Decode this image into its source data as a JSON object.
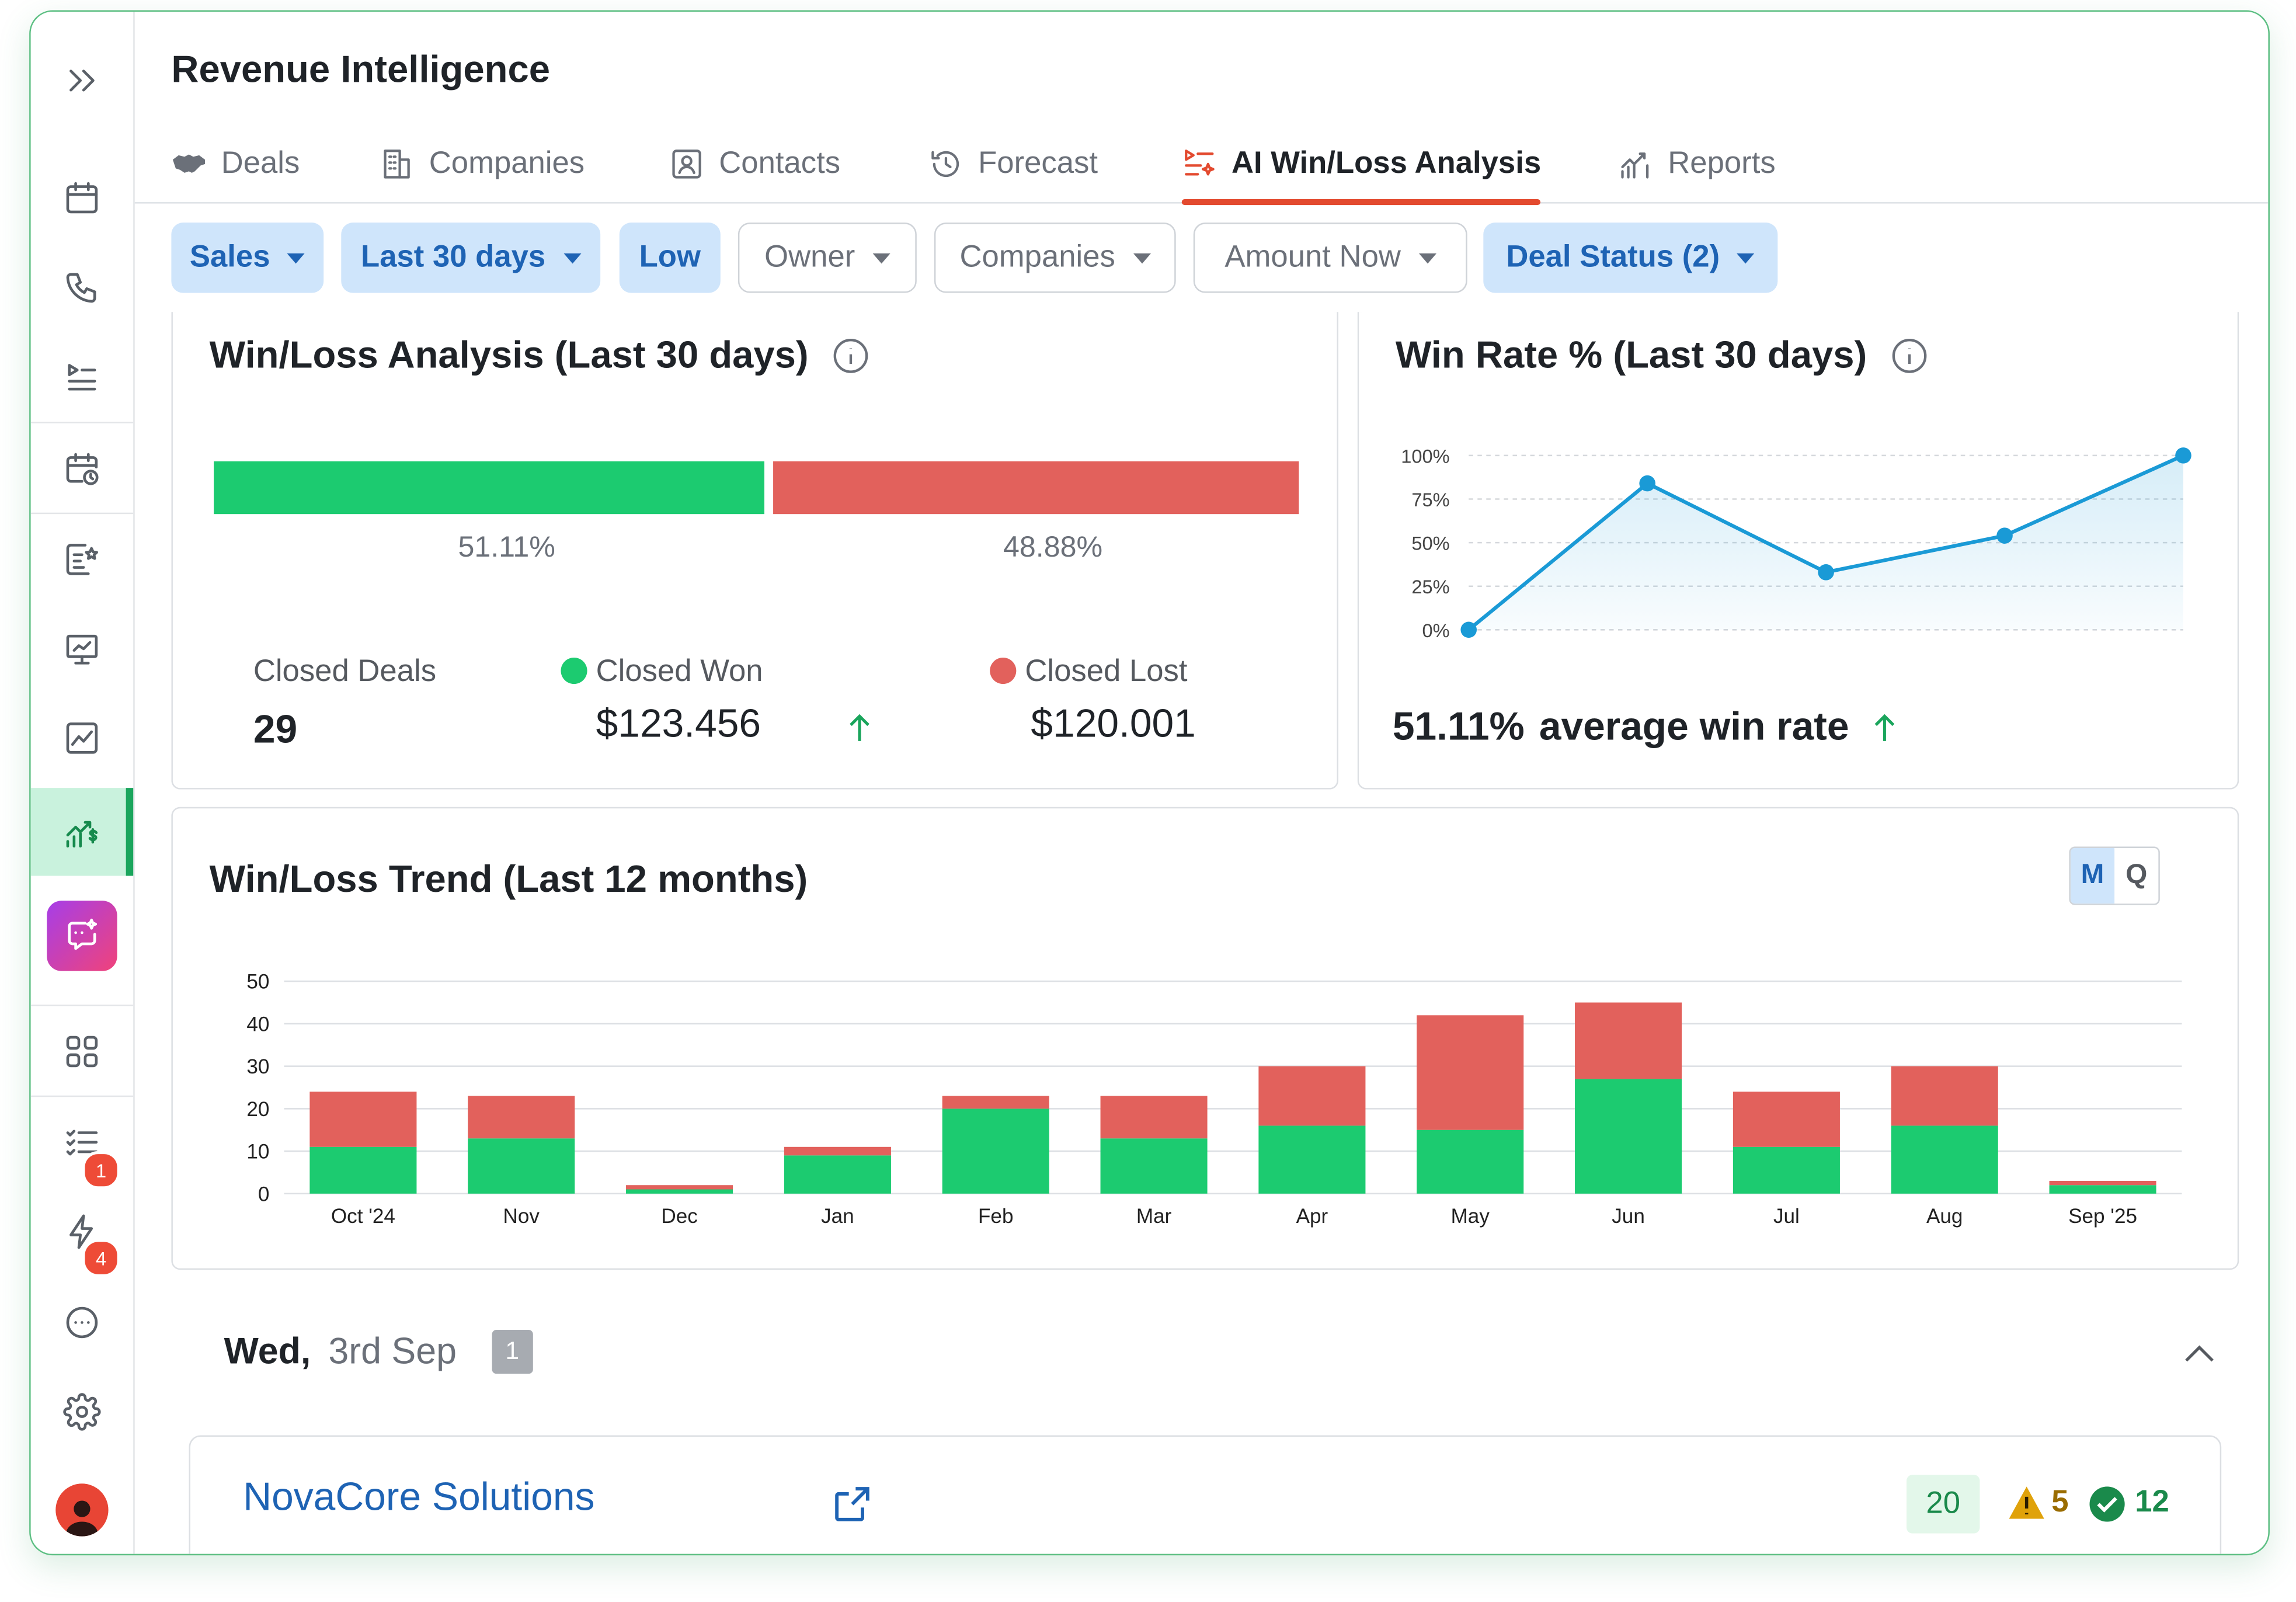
{
  "app": {
    "title": "Revenue Intelligence"
  },
  "sidebar": {
    "expand_icon": "chevrons-right-icon",
    "items": [
      {
        "icon": "calendar-icon"
      },
      {
        "icon": "phone-icon"
      },
      {
        "icon": "playlist-icon"
      },
      {
        "icon": "calendar-clock-icon"
      },
      {
        "icon": "notes-star-icon"
      },
      {
        "icon": "presentation-chart-icon"
      },
      {
        "icon": "line-chart-icon"
      },
      {
        "icon": "revenue-chart-icon",
        "active": true
      },
      {
        "icon": "ai-chat-icon"
      },
      {
        "icon": "apps-grid-icon"
      },
      {
        "icon": "task-list-icon",
        "badge": "1"
      },
      {
        "icon": "lightning-icon",
        "badge": "4"
      },
      {
        "icon": "more-icon"
      },
      {
        "icon": "settings-icon"
      },
      {
        "icon": "user-avatar-icon"
      }
    ]
  },
  "tabs": [
    {
      "label": "Deals",
      "icon": "handshake-icon"
    },
    {
      "label": "Companies",
      "icon": "building-icon"
    },
    {
      "label": "Contacts",
      "icon": "contact-card-icon"
    },
    {
      "label": "Forecast",
      "icon": "history-icon"
    },
    {
      "label": "AI Win/Loss Analysis",
      "icon": "ai-list-icon",
      "active": true
    },
    {
      "label": "Reports",
      "icon": "report-chart-icon"
    }
  ],
  "filters": [
    {
      "label": "Sales",
      "active": true,
      "dropdown": true
    },
    {
      "label": "Last 30 days",
      "active": true,
      "dropdown": true
    },
    {
      "label": "Low",
      "active": true,
      "dropdown": false
    },
    {
      "label": "Owner",
      "active": false,
      "dropdown": true
    },
    {
      "label": "Companies",
      "active": false,
      "dropdown": true
    },
    {
      "label": "Amount Now",
      "active": false,
      "dropdown": true
    },
    {
      "label": "Deal Status (2)",
      "active": true,
      "dropdown": true
    }
  ],
  "winloss": {
    "title": "Win/Loss Analysis (Last 30 days)",
    "won_pct": "51.11%",
    "lost_pct": "48.88%",
    "won_fraction": 0.5111,
    "closed_deals_label": "Closed Deals",
    "closed_deals_value": "29",
    "closed_won_label": "Closed Won",
    "closed_won_value": "$123.456",
    "closed_lost_label": "Closed Lost",
    "closed_lost_value": "$120.001",
    "trend_icon": "arrow-up-icon"
  },
  "winrate": {
    "title": "Win Rate % (Last 30 days)",
    "average_value": "51.11%",
    "average_label": "average win rate",
    "trend_icon": "arrow-up-icon"
  },
  "trend": {
    "title": "Win/Loss Trend (Last 12 months)",
    "toggle": [
      "M",
      "Q"
    ],
    "toggle_selected": "M"
  },
  "day_group": {
    "weekday": "Wed,",
    "date": "3rd Sep",
    "count": "1",
    "collapse_icon": "chevron-up-icon"
  },
  "deal_row": {
    "company": "NovaCore Solutions",
    "open_icon": "external-link-icon",
    "score": "20",
    "warnings": "5",
    "checks": "12"
  },
  "colors": {
    "won": "#1ccb70",
    "lost": "#e2615c",
    "accent_blue": "#1e63b4",
    "line": "#1a9ad6",
    "active_tab": "#e34a2f"
  },
  "chart_data": [
    {
      "type": "line",
      "title": "Win Rate % (Last 30 days)",
      "x": [
        1,
        2,
        3,
        4,
        5
      ],
      "y": [
        0,
        84,
        33,
        54,
        100
      ],
      "ylim": [
        0,
        100
      ],
      "yticks": [
        "0%",
        "25%",
        "50%",
        "75%",
        "100%"
      ],
      "grid": true
    },
    {
      "type": "bar",
      "stacked": true,
      "title": "Win/Loss Trend (Last 12 months)",
      "categories": [
        "Oct '24",
        "Nov",
        "Dec",
        "Jan",
        "Feb",
        "Mar",
        "Apr",
        "May",
        "Jun",
        "Jul",
        "Aug",
        "Sep '25"
      ],
      "series": [
        {
          "values": [
            11,
            13,
            1,
            9,
            20,
            13,
            16,
            15,
            27,
            11,
            16,
            2
          ]
        },
        {
          "values": [
            13,
            10,
            1,
            2,
            3,
            10,
            14,
            27,
            18,
            13,
            14,
            1
          ]
        }
      ],
      "ylim": [
        0,
        50
      ],
      "yticks": [
        0,
        10,
        20,
        30,
        40,
        50
      ],
      "grid": true
    }
  ]
}
